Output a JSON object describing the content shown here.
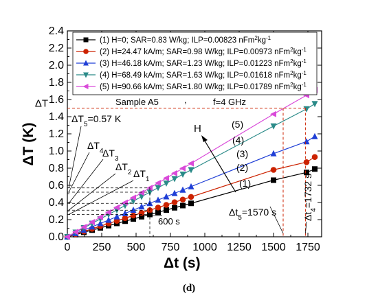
{
  "caption": "(d)",
  "chart_data": {
    "type": "scatter",
    "title": "",
    "xlabel": "Δt (s)",
    "ylabel": "ΔT (K)",
    "xlim": [
      0,
      1850
    ],
    "ylim": [
      0,
      2.4
    ],
    "x_ticks": [
      "0",
      "250",
      "500",
      "750",
      "1000",
      "1250",
      "1500",
      "1750"
    ],
    "y_ticks": [
      "0.0",
      "0.2",
      "0.4",
      "0.6",
      "0.8",
      "1.0",
      "1.2",
      "1.4",
      "1.6",
      "1.8",
      "2.0",
      "2.2",
      "2.4"
    ],
    "legend_position": "top",
    "legend_unit_base": "nFm",
    "legend_unit_exp1": "2",
    "legend_unit_mid": "kg",
    "legend_unit_exp2": "-1",
    "series": [
      {
        "name": "(1) H=0; SAR=0.83 W/kg; ILP=0.00823 ",
        "color": "#000000",
        "marker": "square",
        "curve_label": "(1)",
        "x": [
          0,
          60,
          120,
          180,
          240,
          300,
          360,
          420,
          480,
          540,
          600,
          660,
          720,
          780,
          840,
          900,
          1500,
          1740,
          1800
        ],
        "y": [
          0,
          0.026,
          0.052,
          0.078,
          0.104,
          0.13,
          0.156,
          0.182,
          0.208,
          0.234,
          0.26,
          0.286,
          0.312,
          0.338,
          0.364,
          0.39,
          0.66,
          0.75,
          0.79
        ]
      },
      {
        "name": "(2) H=24.47 kA/m; SAR=0.98 W/kg; ILP=0.00973 ",
        "color": "#cc2200",
        "marker": "circle",
        "curve_label": "(2)",
        "x": [
          0,
          60,
          120,
          180,
          240,
          300,
          360,
          420,
          480,
          540,
          600,
          660,
          720,
          780,
          840,
          900,
          1500,
          1740,
          1800
        ],
        "y": [
          0,
          0.031,
          0.062,
          0.093,
          0.124,
          0.155,
          0.186,
          0.217,
          0.248,
          0.279,
          0.31,
          0.341,
          0.372,
          0.403,
          0.434,
          0.465,
          0.78,
          0.87,
          0.93
        ]
      },
      {
        "name": "(3) H=46.18 kA/m; SAR=1.23 W/kg; ILP=0.01223 ",
        "color": "#1f3fd6",
        "marker": "triangle-up",
        "curve_label": "(3)",
        "x": [
          0,
          60,
          120,
          180,
          240,
          300,
          360,
          420,
          480,
          540,
          600,
          660,
          720,
          780,
          840,
          900,
          1500,
          1740,
          1800
        ],
        "y": [
          0,
          0.039,
          0.078,
          0.117,
          0.156,
          0.195,
          0.234,
          0.273,
          0.312,
          0.351,
          0.39,
          0.429,
          0.468,
          0.507,
          0.546,
          0.585,
          0.97,
          1.11,
          1.17
        ]
      },
      {
        "name": "(4) H=68.49 kA/m; SAR=1.63 W/kg; ILP=0.01618 ",
        "color": "#2a8a88",
        "marker": "triangle-down",
        "curve_label": "(4)",
        "x": [
          0,
          60,
          120,
          180,
          240,
          300,
          360,
          420,
          480,
          540,
          600,
          660,
          720,
          780,
          840,
          900,
          1500,
          1740,
          1800
        ],
        "y": [
          0,
          0.052,
          0.104,
          0.156,
          0.208,
          0.26,
          0.312,
          0.364,
          0.416,
          0.468,
          0.52,
          0.572,
          0.624,
          0.676,
          0.728,
          0.78,
          1.29,
          1.49,
          1.55
        ]
      },
      {
        "name": "(5) H=90.66 kA/m; SAR=1.80 W/kg; ILP=0.01789 ",
        "color": "#d94ad9",
        "marker": "triangle-left",
        "curve_label": "(5)",
        "x": [
          0,
          60,
          120,
          180,
          240,
          300,
          360,
          420,
          480,
          540,
          600,
          660,
          720,
          780,
          840,
          900,
          1500,
          1740,
          1800
        ],
        "y": [
          0,
          0.057,
          0.114,
          0.171,
          0.228,
          0.285,
          0.342,
          0.399,
          0.456,
          0.513,
          0.57,
          0.627,
          0.684,
          0.741,
          0.798,
          0.855,
          1.43,
          1.65,
          1.71
        ]
      }
    ],
    "annotations": {
      "sample": "Sample A5",
      "frequency": "f=4 GHz",
      "comma": ",",
      "deltaT_axis_label": "ΔT",
      "deltaT_level": 1.5,
      "dT5_label": "ΔT",
      "dT5_sub": "5",
      "dT5_value": "=0.57 K",
      "dT4": "ΔT",
      "dT4_sub": "4",
      "dT3": "ΔT",
      "dT3_sub": "3",
      "dT2": "ΔT",
      "dT2_sub": "2",
      "dT1": "ΔT",
      "dT1_sub": "1",
      "t600_label": "600 s",
      "t600_value": 600,
      "t5_label": "Δt",
      "t5_sub": "5",
      "t5_value_text": "=1570 s",
      "t5_value": 1570,
      "t4_label": "Δt",
      "t4_sub": "4",
      "t4_value_text": "=1732 s",
      "t4_value": 1732,
      "H_label": "H",
      "dashed_levels": [
        0.26,
        0.31,
        0.39,
        0.52,
        0.57
      ]
    }
  }
}
